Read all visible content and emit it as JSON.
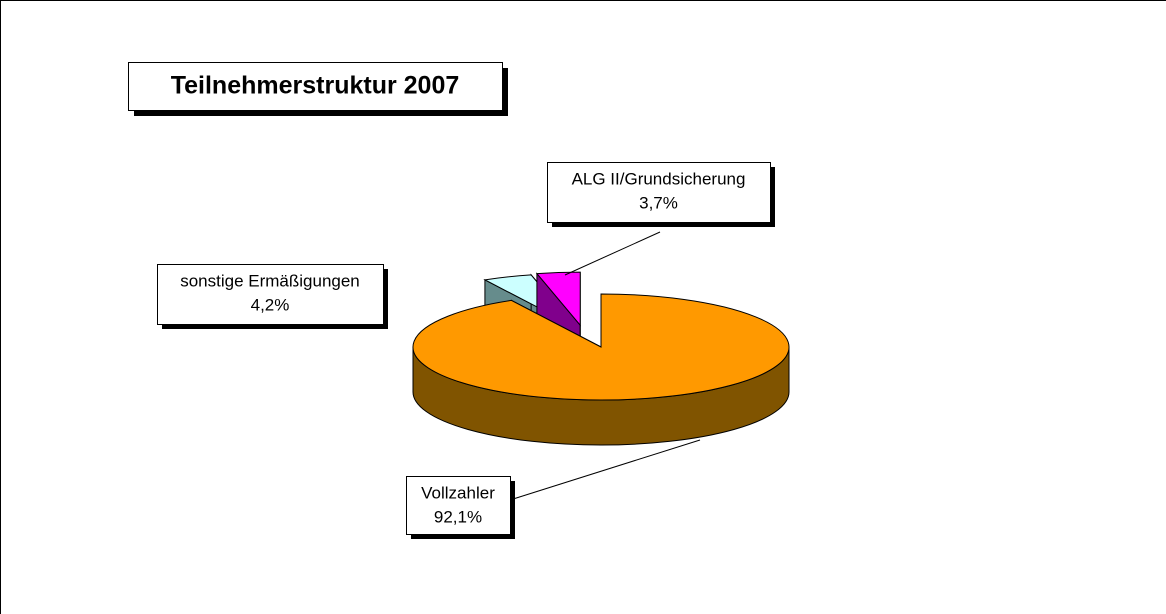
{
  "chart_data": {
    "type": "pie3d",
    "title": "Teilnehmerstruktur 2007",
    "categories": [
      "Vollzahler",
      "sonstige Ermäßigungen",
      "ALG II/Grundsicherung"
    ],
    "values": [
      92.1,
      4.2,
      3.7
    ],
    "value_labels": [
      "92,1%",
      "4,2%",
      "3,7%"
    ],
    "colors": [
      "#ff9900",
      "#ccffff",
      "#ff00ff"
    ]
  }
}
